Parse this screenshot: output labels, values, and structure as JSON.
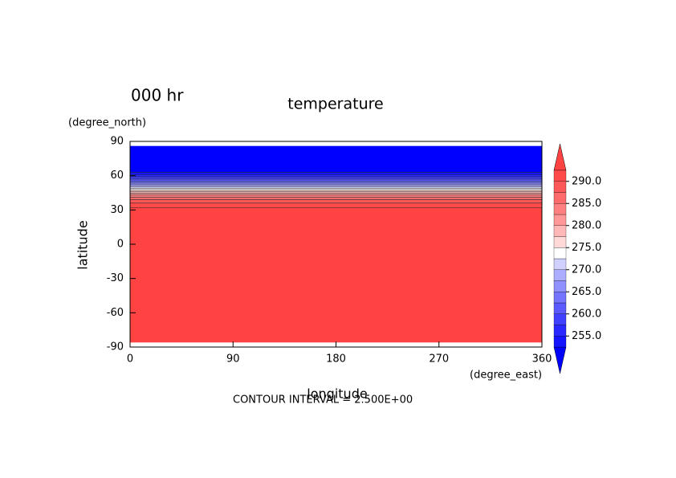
{
  "chart_data": {
    "type": "contour",
    "time_label": "000 hr",
    "title": "temperature",
    "y_units": "(degree_north)",
    "y_label": "latitude",
    "x_label": "longitude",
    "x_units": "(degree_east)",
    "footnote": "CONTOUR INTERVAL = 2.500E+00",
    "xlim": [
      0,
      360
    ],
    "xticks": [
      0,
      90,
      180,
      270,
      360
    ],
    "ylim": [
      -90,
      90
    ],
    "yticks": [
      -90,
      -60,
      -30,
      0,
      30,
      60,
      90
    ],
    "lat_extent": [
      -86,
      86
    ],
    "levels": [
      252.5,
      255,
      257.5,
      260,
      262.5,
      265,
      267.5,
      270,
      272.5,
      275,
      277.5,
      280,
      282.5,
      285,
      287.5,
      290,
      292.5
    ],
    "contour_lat": [
      63,
      61,
      59,
      57,
      55,
      53.5,
      52,
      50.5,
      49,
      47.5,
      46,
      44.5,
      43,
      41,
      39,
      36,
      32
    ],
    "colors": [
      "#0000ff",
      "#1414ff",
      "#2828ff",
      "#4040ff",
      "#5a5aff",
      "#7474ff",
      "#9090ff",
      "#adadff",
      "#d0d0ff",
      "#ffffff",
      "#ffd8d8",
      "#ffb8b8",
      "#ff9898",
      "#ff8080",
      "#ff6a6a",
      "#ff5858",
      "#ff4a4a",
      "#ff4242"
    ],
    "colorbar_ticks": [
      {
        "value": 255,
        "label": "255.0"
      },
      {
        "value": 260,
        "label": "260.0"
      },
      {
        "value": 265,
        "label": "265.0"
      },
      {
        "value": 270,
        "label": "270.0"
      },
      {
        "value": 275,
        "label": "275.0"
      },
      {
        "value": 280,
        "label": "280.0"
      },
      {
        "value": 285,
        "label": "285.0"
      },
      {
        "value": 290,
        "label": "290.0"
      }
    ]
  }
}
